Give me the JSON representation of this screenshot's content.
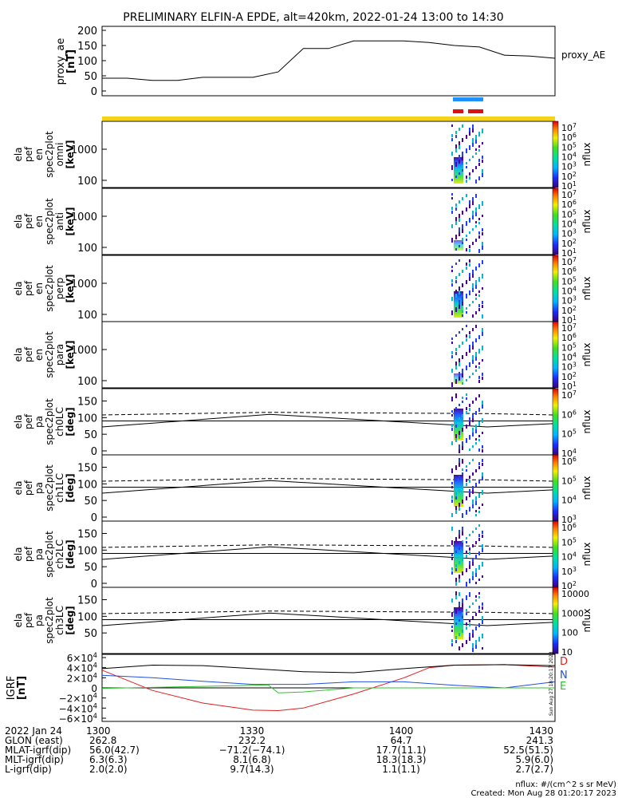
{
  "title": "PRELIMINARY ELFIN-A EPDE, alt=420km, 2022-01-24 13:00 to 14:30",
  "proxy_panel": {
    "ylabel": [
      "proxy_ae",
      "[nT]"
    ],
    "legend": "proxy_AE",
    "yticks": [
      "200",
      "150",
      "100",
      "50",
      "0"
    ]
  },
  "spectro_panels": [
    {
      "labels": [
        "ela",
        "pef",
        "en",
        "spec2plot",
        "omni",
        "[keV]"
      ],
      "ticks": [
        "1000",
        "100"
      ],
      "cbar": [
        "10^7",
        "10^6",
        "10^5",
        "10^4",
        "10^3",
        "10^2",
        "10^1"
      ],
      "cbar_label": "nflux"
    },
    {
      "labels": [
        "ela",
        "pef",
        "en",
        "spec2plot",
        "anti",
        "[keV]"
      ],
      "ticks": [
        "1000",
        "100"
      ],
      "cbar": [
        "10^7",
        "10^6",
        "10^5",
        "10^4",
        "10^3",
        "10^2",
        "10^1"
      ],
      "cbar_label": "nflux"
    },
    {
      "labels": [
        "ela",
        "pef",
        "en",
        "spec2plot",
        "perp",
        "[keV]"
      ],
      "ticks": [
        "1000",
        "100"
      ],
      "cbar": [
        "10^7",
        "10^6",
        "10^5",
        "10^4",
        "10^3",
        "10^2",
        "10^1"
      ],
      "cbar_label": "nflux"
    },
    {
      "labels": [
        "ela",
        "pef",
        "en",
        "spec2plot",
        "para",
        "[keV]"
      ],
      "ticks": [
        "1000",
        "100"
      ],
      "cbar": [
        "10^7",
        "10^6",
        "10^5",
        "10^4",
        "10^3",
        "10^2",
        "10^1"
      ],
      "cbar_label": "nflux"
    },
    {
      "labels": [
        "ela",
        "pef",
        "pa",
        "spec2plot",
        "ch0LC",
        "[deg]"
      ],
      "ticks": [
        "150",
        "100",
        "50",
        "0"
      ],
      "cbar": [
        "10^7",
        "10^6",
        "10^5",
        "10^4"
      ],
      "cbar_label": "nflux"
    },
    {
      "labels": [
        "ela",
        "pef",
        "pa",
        "spec2plot",
        "ch1LC",
        "[deg]"
      ],
      "ticks": [
        "150",
        "100",
        "50",
        "0"
      ],
      "cbar": [
        "10^6",
        "10^5",
        "10^4",
        "10^3"
      ],
      "cbar_label": "nflux"
    },
    {
      "labels": [
        "ela",
        "pef",
        "pa",
        "spec2plot",
        "ch2LC",
        "[deg]"
      ],
      "ticks": [
        "150",
        "100",
        "50",
        "0"
      ],
      "cbar": [
        "10^6",
        "10^5",
        "10^4",
        "10^3",
        "10^2"
      ],
      "cbar_label": "nflux"
    },
    {
      "labels": [
        "ela",
        "pef",
        "pa",
        "spec2plot",
        "ch3LC",
        "[deg]"
      ],
      "ticks": [
        "150",
        "100",
        "50"
      ],
      "cbar": [
        "10000",
        "1000",
        "100",
        "10"
      ],
      "cbar_label": "nflux"
    }
  ],
  "igrf_panel": {
    "ylabel": [
      "IGRF",
      "[nT]"
    ],
    "yticks": [
      "6×10^4",
      "4×10^4",
      "2×10^4",
      "0",
      "−2×10^4",
      "−4×10^4",
      "−6×10^4"
    ],
    "legend": [
      {
        "label": "D",
        "color": "#e02020"
      },
      {
        "label": "N",
        "color": "#2050e0"
      },
      {
        "label": "E",
        "color": "#30c030"
      }
    ],
    "side_text": "Sun Aug 27 18:20:17 2023"
  },
  "x_axis": {
    "rows": [
      {
        "label": "2022 Jan 24",
        "values": [
          "1300",
          "1330",
          "1400",
          "1430"
        ]
      },
      {
        "label": "GLON (east)",
        "values": [
          "262.8",
          "232.2",
          "64.7",
          "241.3"
        ]
      },
      {
        "label": "MLAT-igrf(dip)",
        "values": [
          "56.0(42.7)",
          "−71.2(−74.1)",
          "17.7(11.1)",
          "52.5(51.5)"
        ]
      },
      {
        "label": "MLT-igrf(dip)",
        "values": [
          "6.3(6.3)",
          "8.1(6.8)",
          "18.3(18.3)",
          "5.9(6.0)"
        ]
      },
      {
        "label": "L-igrf(dip)",
        "values": [
          "2.0(2.0)",
          "9.7(14.3)",
          "1.1(1.1)",
          "2.7(2.7)"
        ]
      }
    ]
  },
  "footer": {
    "units": "nflux: #/(cm^2 s sr MeV)",
    "created": "Created: Mon Aug 28 01:20:17 2023"
  },
  "colors": {
    "status_bar": "#f2d21a",
    "science_zone_blue": "#1e90ff",
    "science_zone_red": "#e01010",
    "D": "#e02020",
    "N": "#2050e0",
    "E": "#30c030"
  },
  "chart_data": [
    {
      "type": "line",
      "title": "PRELIMINARY ELFIN-A EPDE, alt=420km, 2022-01-24 13:00 to 14:30",
      "series": [
        {
          "name": "proxy_AE",
          "x": [
            "13:00",
            "13:05",
            "13:10",
            "13:15",
            "13:20",
            "13:25",
            "13:30",
            "13:35",
            "13:40",
            "13:45",
            "13:50",
            "13:55",
            "14:00",
            "14:05",
            "14:10",
            "14:15",
            "14:20",
            "14:25",
            "14:30"
          ],
          "values": [
            42,
            42,
            35,
            35,
            45,
            45,
            45,
            63,
            140,
            140,
            165,
            165,
            165,
            160,
            150,
            145,
            118,
            115,
            108
          ]
        }
      ],
      "ylim": [
        0,
        200
      ],
      "ylabel": "proxy_ae [nT]"
    },
    {
      "type": "line",
      "series": [
        {
          "name": "D",
          "x": [
            "13:00",
            "13:10",
            "13:20",
            "13:30",
            "13:35",
            "13:40",
            "13:50",
            "14:00",
            "14:05",
            "14:10",
            "14:20",
            "14:30"
          ],
          "values": [
            35000,
            -5000,
            -30000,
            -44000,
            -45000,
            -40000,
            -12000,
            20000,
            40000,
            45000,
            46000,
            41000
          ]
        },
        {
          "name": "N",
          "x": [
            "13:00",
            "13:10",
            "13:20",
            "13:30",
            "13:40",
            "13:50",
            "14:00",
            "14:10",
            "14:20",
            "14:30"
          ],
          "values": [
            25000,
            20000,
            13000,
            7000,
            7000,
            12000,
            12000,
            5000,
            0,
            12000
          ]
        },
        {
          "name": "E",
          "x": [
            "13:00",
            "13:10",
            "13:20",
            "13:30",
            "13:33",
            "13:35",
            "13:40",
            "13:50",
            "14:00",
            "14:10",
            "14:20",
            "14:30"
          ],
          "values": [
            -1000,
            1000,
            3000,
            5000,
            6000,
            -10000,
            -8000,
            0,
            0,
            0,
            0,
            0
          ]
        },
        {
          "x": [
            "13:00",
            "13:10",
            "13:20",
            "13:30",
            "13:40",
            "13:50",
            "14:00",
            "14:10",
            "14:20",
            "14:30"
          ],
          "values": [
            38000,
            45000,
            44000,
            38000,
            32000,
            30000,
            38000,
            45000,
            46000,
            44000
          ]
        }
      ],
      "ylim": [
        -60000,
        60000
      ],
      "ylabel": "IGRF [nT]"
    }
  ]
}
